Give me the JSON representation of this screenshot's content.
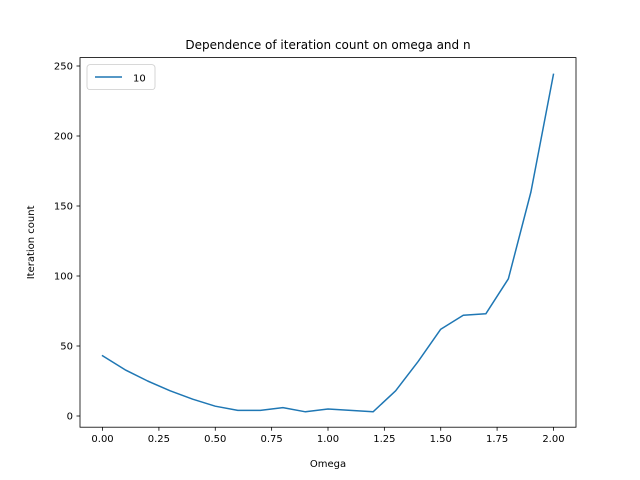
{
  "chart_data": {
    "type": "line",
    "title": "Dependence of iteration count on omega and n",
    "xlabel": "Omega",
    "ylabel": "Iteration count",
    "xlim": [
      -0.1,
      2.1
    ],
    "ylim": [
      -8,
      256
    ],
    "xticks": [
      0.0,
      0.25,
      0.5,
      0.75,
      1.0,
      1.25,
      1.5,
      1.75,
      2.0
    ],
    "xtick_labels": [
      "0.00",
      "0.25",
      "0.50",
      "0.75",
      "1.00",
      "1.25",
      "1.50",
      "1.75",
      "2.00"
    ],
    "yticks": [
      0,
      50,
      100,
      150,
      200,
      250
    ],
    "ytick_labels": [
      "0",
      "50",
      "100",
      "150",
      "200",
      "250"
    ],
    "grid": false,
    "legend": {
      "position": "top-left"
    },
    "series": [
      {
        "name": "10",
        "color": "#1f77b4",
        "x": [
          0.0,
          0.1,
          0.2,
          0.3,
          0.4,
          0.5,
          0.6,
          0.7,
          0.8,
          0.9,
          1.0,
          1.1,
          1.2,
          1.3,
          1.4,
          1.5,
          1.6,
          1.7,
          1.8,
          1.9,
          2.0
        ],
        "y": [
          43,
          33,
          25,
          18,
          12,
          7,
          4,
          4,
          6,
          3,
          5,
          4,
          3,
          18,
          39,
          62,
          72,
          73,
          98,
          160,
          244
        ]
      }
    ]
  }
}
